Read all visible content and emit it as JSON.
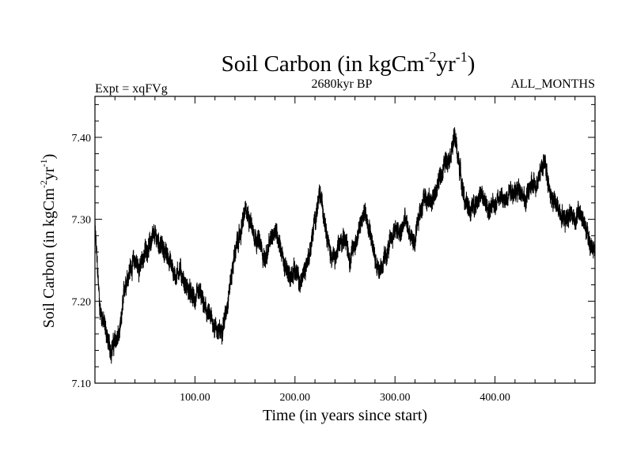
{
  "chart_data": {
    "type": "line",
    "title": "Soil Carbon (in kgCm",
    "title_sup1": "-2",
    "title_mid": "yr",
    "title_sup2": "-1",
    "title_end": ")",
    "subtitle_left": "Expt = xqFVg",
    "subtitle_center": "2680kyr BP",
    "subtitle_right": "ALL_MONTHS",
    "xlabel": "Time (in years since start)",
    "ylabel_main": "Soil Carbon (in kgCm",
    "ylabel_sup1": "-2",
    "ylabel_mid": "yr",
    "ylabel_sup2": "-1",
    "ylabel_end": ")",
    "xlim": [
      0,
      500
    ],
    "ylim": [
      7.1,
      7.45
    ],
    "xticks": [
      100,
      200,
      300,
      400
    ],
    "xtick_labels": [
      "100.00",
      "200.00",
      "300.00",
      "400.00"
    ],
    "yticks": [
      7.1,
      7.2,
      7.3,
      7.4
    ],
    "ytick_labels": [
      "7.10",
      "7.20",
      "7.30",
      "7.40"
    ],
    "grid": false,
    "series": [
      {
        "name": "Soil Carbon",
        "color": "#000000",
        "noise_amplitude": 0.012,
        "x": [
          0,
          2,
          5,
          10,
          15,
          20,
          25,
          30,
          35,
          40,
          45,
          50,
          55,
          60,
          65,
          70,
          75,
          80,
          85,
          90,
          95,
          100,
          105,
          110,
          115,
          120,
          125,
          130,
          135,
          140,
          145,
          150,
          155,
          160,
          165,
          170,
          175,
          180,
          185,
          190,
          195,
          200,
          205,
          210,
          215,
          220,
          225,
          230,
          235,
          240,
          245,
          250,
          255,
          260,
          265,
          270,
          275,
          280,
          285,
          290,
          295,
          300,
          305,
          310,
          315,
          320,
          325,
          330,
          335,
          340,
          345,
          350,
          355,
          360,
          365,
          370,
          375,
          380,
          385,
          390,
          395,
          400,
          405,
          410,
          415,
          420,
          425,
          430,
          435,
          440,
          445,
          450,
          455,
          460,
          465,
          470,
          475,
          480,
          485,
          490,
          495,
          500
        ],
        "values": [
          7.29,
          7.25,
          7.19,
          7.17,
          7.14,
          7.15,
          7.16,
          7.22,
          7.24,
          7.25,
          7.24,
          7.26,
          7.27,
          7.28,
          7.27,
          7.26,
          7.25,
          7.23,
          7.24,
          7.22,
          7.21,
          7.2,
          7.21,
          7.19,
          7.18,
          7.17,
          7.16,
          7.18,
          7.22,
          7.26,
          7.28,
          7.31,
          7.3,
          7.28,
          7.27,
          7.25,
          7.27,
          7.29,
          7.27,
          7.24,
          7.23,
          7.24,
          7.22,
          7.24,
          7.26,
          7.3,
          7.33,
          7.3,
          7.26,
          7.25,
          7.27,
          7.28,
          7.25,
          7.27,
          7.29,
          7.31,
          7.29,
          7.25,
          7.24,
          7.25,
          7.27,
          7.29,
          7.28,
          7.3,
          7.28,
          7.27,
          7.31,
          7.33,
          7.32,
          7.33,
          7.35,
          7.37,
          7.38,
          7.4,
          7.36,
          7.32,
          7.31,
          7.32,
          7.33,
          7.32,
          7.31,
          7.32,
          7.33,
          7.32,
          7.34,
          7.33,
          7.34,
          7.32,
          7.34,
          7.34,
          7.36,
          7.37,
          7.33,
          7.32,
          7.31,
          7.3,
          7.31,
          7.3,
          7.31,
          7.29,
          7.27,
          7.26
        ]
      }
    ]
  }
}
